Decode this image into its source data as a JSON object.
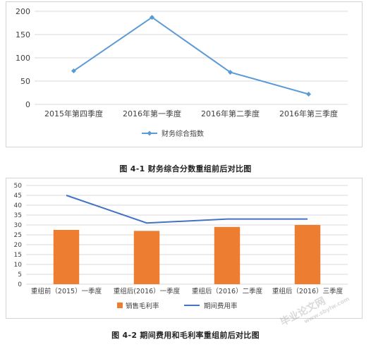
{
  "chart_data": [
    {
      "type": "line",
      "title": "",
      "categories": [
        "2015年第四季度",
        "2016年第一季度",
        "2016年第二季度",
        "2016年第三季度"
      ],
      "series": [
        {
          "name": "财务综合指数",
          "values": [
            72,
            187,
            69,
            22
          ],
          "color": "#5b9bd5"
        }
      ],
      "ylim": [
        0,
        200
      ],
      "yticks": [
        0,
        50,
        100,
        150,
        200
      ],
      "grid": true,
      "legend": "bottom",
      "xlabel": "",
      "ylabel": ""
    },
    {
      "type": "bar",
      "title": "",
      "categories": [
        "重组前（2015）一季度",
        "重组后(2016）一季度",
        "重组后（2016）二季度",
        "重组后（2016）三季度"
      ],
      "series": [
        {
          "name": "销售毛利率",
          "type": "bar",
          "values": [
            27.5,
            27,
            29,
            30
          ],
          "color": "#ed7d31"
        },
        {
          "name": "期间费用率",
          "type": "line",
          "values": [
            45,
            31,
            33,
            33
          ],
          "color": "#4472c4"
        }
      ],
      "ylim": [
        0,
        50
      ],
      "yticks": [
        0,
        5,
        10,
        15,
        20,
        25,
        30,
        35,
        40,
        45,
        50
      ],
      "grid": true,
      "legend": "bottom",
      "xlabel": "",
      "ylabel": ""
    }
  ],
  "captions": {
    "figure1": "图 4-1   财务综合分数重组前后对比图",
    "figure2": "图 4-2   期间费用和毛利率重组前后对比图"
  },
  "watermark": {
    "main": "毕业论文网",
    "sub": "www.sbylw.com"
  }
}
